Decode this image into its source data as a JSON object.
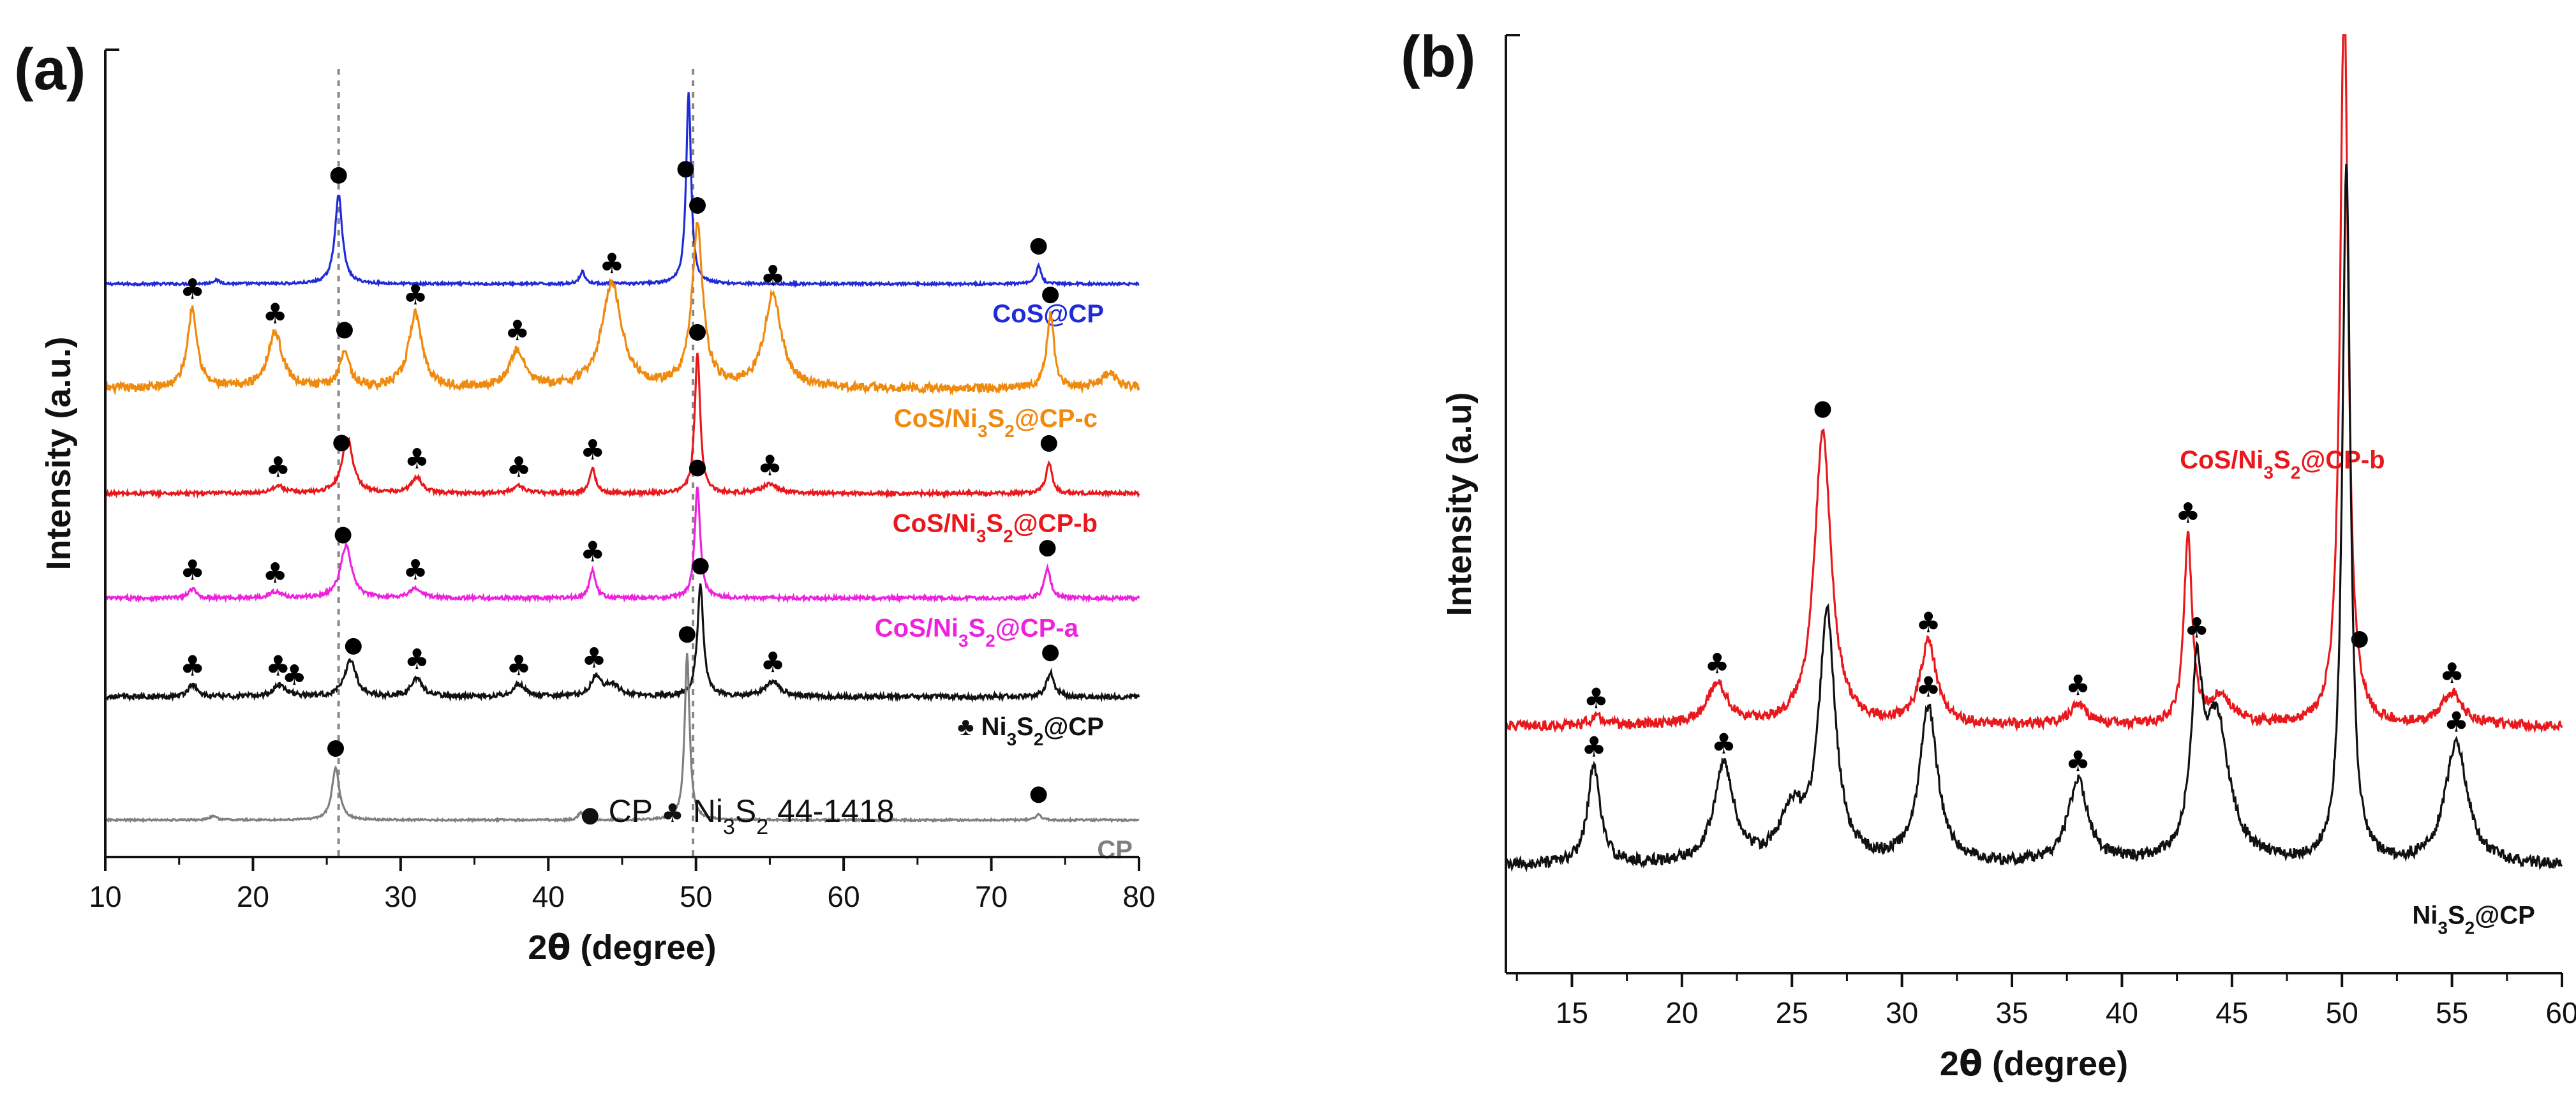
{
  "colors": {
    "CoS@CP": "#1f2bd6",
    "CoS/Ni3S2@CP-c": "#f08a0e",
    "CoS/Ni3S2@CP-b": "#e8181c",
    "CoS/Ni3S2@CP-a": "#ee22dd",
    "Ni3S2@CP": "#111111",
    "CP": "#7f7f7f",
    "axis": "#111111",
    "reference_line": "#888888"
  },
  "marker_symbols": {
    "CP": "●",
    "Ni3S2": "♣"
  },
  "chart_data": [
    {
      "panel_label": "(a)",
      "type": "line",
      "xlabel_base": "2",
      "xlabel_symbol": "θ",
      "xlabel_unit": " (degree)",
      "ylabel": "Intensity (a.u.)",
      "xlim": [
        10,
        80
      ],
      "xticks": [
        "10",
        "20",
        "30",
        "40",
        "50",
        "60",
        "70",
        "80"
      ],
      "yticks_shown": false,
      "reference_lines_x": [
        25.8,
        49.8
      ],
      "legend": {
        "cp_symbol": "●",
        "cp_label": " CP   ",
        "ni_symbol": "♣",
        "ni_text": " Ni",
        "ni_sub3": "3",
        "ni_s": "S",
        "ni_sub2": "2",
        "ni_ref": "  44-1418"
      },
      "series": [
        {
          "name": "CoS@CP",
          "label_parts": [
            "CoS@CP"
          ],
          "baseline": 0.87,
          "noise": 0.002,
          "peaks": [
            [
              17.5,
              0.006,
              0.3
            ],
            [
              25.8,
              0.145,
              0.3
            ],
            [
              42.3,
              0.02,
              0.22
            ],
            [
              49.5,
              0.31,
              0.2
            ],
            [
              73.2,
              0.03,
              0.2
            ]
          ],
          "markers": [
            {
              "x": 25.8,
              "type": "CP"
            },
            {
              "x": 49.3,
              "type": "CP"
            },
            {
              "x": 73.2,
              "type": "CP"
            }
          ]
        },
        {
          "name": "CoS/Ni3S2@CP-c",
          "label_parts": [
            "CoS/Ni",
            "3",
            "S",
            "2",
            "@CP-c"
          ],
          "baseline": 0.7,
          "noise": 0.007,
          "peaks": [
            [
              15.9,
              0.13,
              0.4
            ],
            [
              21.5,
              0.09,
              0.6
            ],
            [
              26.2,
              0.06,
              0.4
            ],
            [
              31,
              0.12,
              0.55
            ],
            [
              37.9,
              0.06,
              0.6
            ],
            [
              44.3,
              0.17,
              0.8
            ],
            [
              50.1,
              0.26,
              0.45
            ],
            [
              55.2,
              0.15,
              0.7
            ],
            [
              74,
              0.12,
              0.3
            ],
            [
              78,
              0.025,
              0.6
            ]
          ],
          "markers": [
            {
              "x": 15.9,
              "type": "Ni3S2"
            },
            {
              "x": 21.5,
              "type": "Ni3S2"
            },
            {
              "x": 26.2,
              "type": "CP"
            },
            {
              "x": 31.0,
              "type": "Ni3S2"
            },
            {
              "x": 37.9,
              "type": "Ni3S2"
            },
            {
              "x": 44.3,
              "type": "Ni3S2"
            },
            {
              "x": 50.1,
              "type": "CP"
            },
            {
              "x": 55.2,
              "type": "Ni3S2"
            },
            {
              "x": 74.0,
              "type": "CP"
            }
          ]
        },
        {
          "name": "CoS/Ni3S2@CP-b",
          "label_parts": [
            "CoS/Ni",
            "3",
            "S",
            "2",
            "@CP-b"
          ],
          "baseline": 0.53,
          "noise": 0.003,
          "peaks": [
            [
              21.7,
              0.012,
              0.5
            ],
            [
              26.4,
              0.09,
              0.45
            ],
            [
              31.1,
              0.025,
              0.45
            ],
            [
              38,
              0.012,
              0.5
            ],
            [
              43,
              0.04,
              0.25
            ],
            [
              50.1,
              0.23,
              0.22
            ],
            [
              55,
              0.015,
              0.6
            ],
            [
              73.9,
              0.05,
              0.25
            ]
          ],
          "markers": [
            {
              "x": 21.7,
              "type": "Ni3S2"
            },
            {
              "x": 26.0,
              "type": "CP"
            },
            {
              "x": 31.1,
              "type": "Ni3S2"
            },
            {
              "x": 38.0,
              "type": "Ni3S2"
            },
            {
              "x": 43.0,
              "type": "Ni3S2"
            },
            {
              "x": 50.1,
              "type": "CP"
            },
            {
              "x": 55.0,
              "type": "Ni3S2"
            },
            {
              "x": 73.9,
              "type": "CP"
            }
          ]
        },
        {
          "name": "CoS/Ni3S2@CP-a",
          "label_parts": [
            "CoS/Ni",
            "3",
            "S",
            "2",
            "@CP-a"
          ],
          "baseline": 0.36,
          "noise": 0.003,
          "peaks": [
            [
              15.9,
              0.015,
              0.3
            ],
            [
              21.5,
              0.01,
              0.5
            ],
            [
              26.3,
              0.085,
              0.45
            ],
            [
              31,
              0.015,
              0.5
            ],
            [
              43,
              0.045,
              0.25
            ],
            [
              50.1,
              0.18,
              0.22
            ],
            [
              73.8,
              0.05,
              0.25
            ]
          ],
          "markers": [
            {
              "x": 15.9,
              "type": "Ni3S2"
            },
            {
              "x": 21.5,
              "type": "Ni3S2"
            },
            {
              "x": 26.1,
              "type": "CP"
            },
            {
              "x": 31.0,
              "type": "Ni3S2"
            },
            {
              "x": 43.0,
              "type": "Ni3S2"
            },
            {
              "x": 50.1,
              "type": "CP"
            },
            {
              "x": 73.8,
              "type": "CP"
            }
          ]
        },
        {
          "name": "Ni3S2@CP",
          "label_parts": [
            "♣ Ni",
            "3",
            "S",
            "2",
            "@CP"
          ],
          "baseline": 0.2,
          "noise": 0.004,
          "peaks": [
            [
              15.9,
              0.02,
              0.35
            ],
            [
              21.8,
              0.02,
              0.5
            ],
            [
              26.6,
              0.06,
              0.45
            ],
            [
              31.1,
              0.03,
              0.45
            ],
            [
              38,
              0.02,
              0.5
            ],
            [
              43.2,
              0.03,
              0.4
            ],
            [
              44.3,
              0.02,
              0.6
            ],
            [
              50.3,
              0.18,
              0.25
            ],
            [
              55.2,
              0.025,
              0.6
            ],
            [
              74,
              0.04,
              0.3
            ]
          ],
          "markers": [
            {
              "x": 15.9,
              "type": "Ni3S2"
            },
            {
              "x": 21.7,
              "type": "Ni3S2"
            },
            {
              "x": 22.8,
              "type": "Ni3S2"
            },
            {
              "x": 26.8,
              "type": "CP"
            },
            {
              "x": 31.1,
              "type": "Ni3S2"
            },
            {
              "x": 38.0,
              "type": "Ni3S2"
            },
            {
              "x": 43.1,
              "type": "Ni3S2"
            },
            {
              "x": 50.3,
              "type": "CP"
            },
            {
              "x": 55.2,
              "type": "Ni3S2"
            },
            {
              "x": 74.0,
              "type": "CP"
            }
          ]
        },
        {
          "name": "CP",
          "label_parts": [
            "CP"
          ],
          "baseline": 0.0,
          "noise": 0.0015,
          "peaks": [
            [
              17.3,
              0.006,
              0.3
            ],
            [
              25.6,
              0.085,
              0.3
            ],
            [
              42.2,
              0.012,
              0.22
            ],
            [
              49.4,
              0.27,
              0.2
            ],
            [
              73.2,
              0.01,
              0.2
            ]
          ],
          "markers": [
            {
              "x": 25.6,
              "type": "CP"
            },
            {
              "x": 49.4,
              "type": "CP"
            },
            {
              "x": 73.2,
              "type": "CP"
            }
          ]
        }
      ]
    },
    {
      "panel_label": "(b)",
      "type": "line",
      "xlabel_base": "2",
      "xlabel_symbol": "θ",
      "xlabel_unit": " (degree)",
      "ylabel": "Intensity (a.u)",
      "xlim": [
        12,
        60
      ],
      "xticks": [
        "15",
        "20",
        "25",
        "30",
        "35",
        "40",
        "45",
        "50",
        "55",
        "60"
      ],
      "yticks_shown": false,
      "series": [
        {
          "name": "CoS/Ni3S2@CP-b",
          "label_parts": [
            "CoS/Ni",
            "3",
            "S",
            "2",
            "@CP-b"
          ],
          "baseline": 0.24,
          "noise": 0.006,
          "peaks": [
            [
              16.1,
              0.01,
              0.4
            ],
            [
              21.6,
              0.05,
              0.55
            ],
            [
              26.4,
              0.36,
              0.45
            ],
            [
              31.2,
              0.1,
              0.45
            ],
            [
              38,
              0.025,
              0.5
            ],
            [
              43,
              0.23,
              0.22
            ],
            [
              44.5,
              0.035,
              0.6
            ],
            [
              50.1,
              0.9,
              0.22
            ],
            [
              55,
              0.04,
              0.55
            ]
          ],
          "markers": [
            {
              "x": 16.1,
              "type": "Ni3S2"
            },
            {
              "x": 21.6,
              "type": "Ni3S2"
            },
            {
              "x": 26.4,
              "type": "CP"
            },
            {
              "x": 31.2,
              "type": "Ni3S2"
            },
            {
              "x": 38.0,
              "type": "Ni3S2"
            },
            {
              "x": 43.0,
              "type": "Ni3S2"
            },
            {
              "x": 50.8,
              "type": "CP"
            },
            {
              "x": 55.0,
              "type": "Ni3S2"
            }
          ]
        },
        {
          "name": "Ni3S2@CP",
          "label_parts": [
            "Ni",
            "3",
            "S",
            "2",
            "@CP"
          ],
          "baseline": 0.07,
          "noise": 0.007,
          "peaks": [
            [
              16,
              0.12,
              0.35
            ],
            [
              21.9,
              0.12,
              0.55
            ],
            [
              25,
              0.06,
              0.6
            ],
            [
              26.6,
              0.3,
              0.45
            ],
            [
              31.2,
              0.19,
              0.5
            ],
            [
              38,
              0.1,
              0.55
            ],
            [
              43.4,
              0.2,
              0.3
            ],
            [
              44.3,
              0.17,
              0.7
            ],
            [
              50.2,
              0.85,
              0.22
            ],
            [
              55.2,
              0.15,
              0.6
            ]
          ],
          "markers": [
            {
              "x": 16.0,
              "type": "Ni3S2"
            },
            {
              "x": 21.9,
              "type": "Ni3S2"
            },
            {
              "x": 31.2,
              "type": "Ni3S2"
            },
            {
              "x": 38.0,
              "type": "Ni3S2"
            },
            {
              "x": 43.4,
              "type": "Ni3S2"
            },
            {
              "x": 55.2,
              "type": "Ni3S2"
            }
          ]
        }
      ]
    }
  ]
}
